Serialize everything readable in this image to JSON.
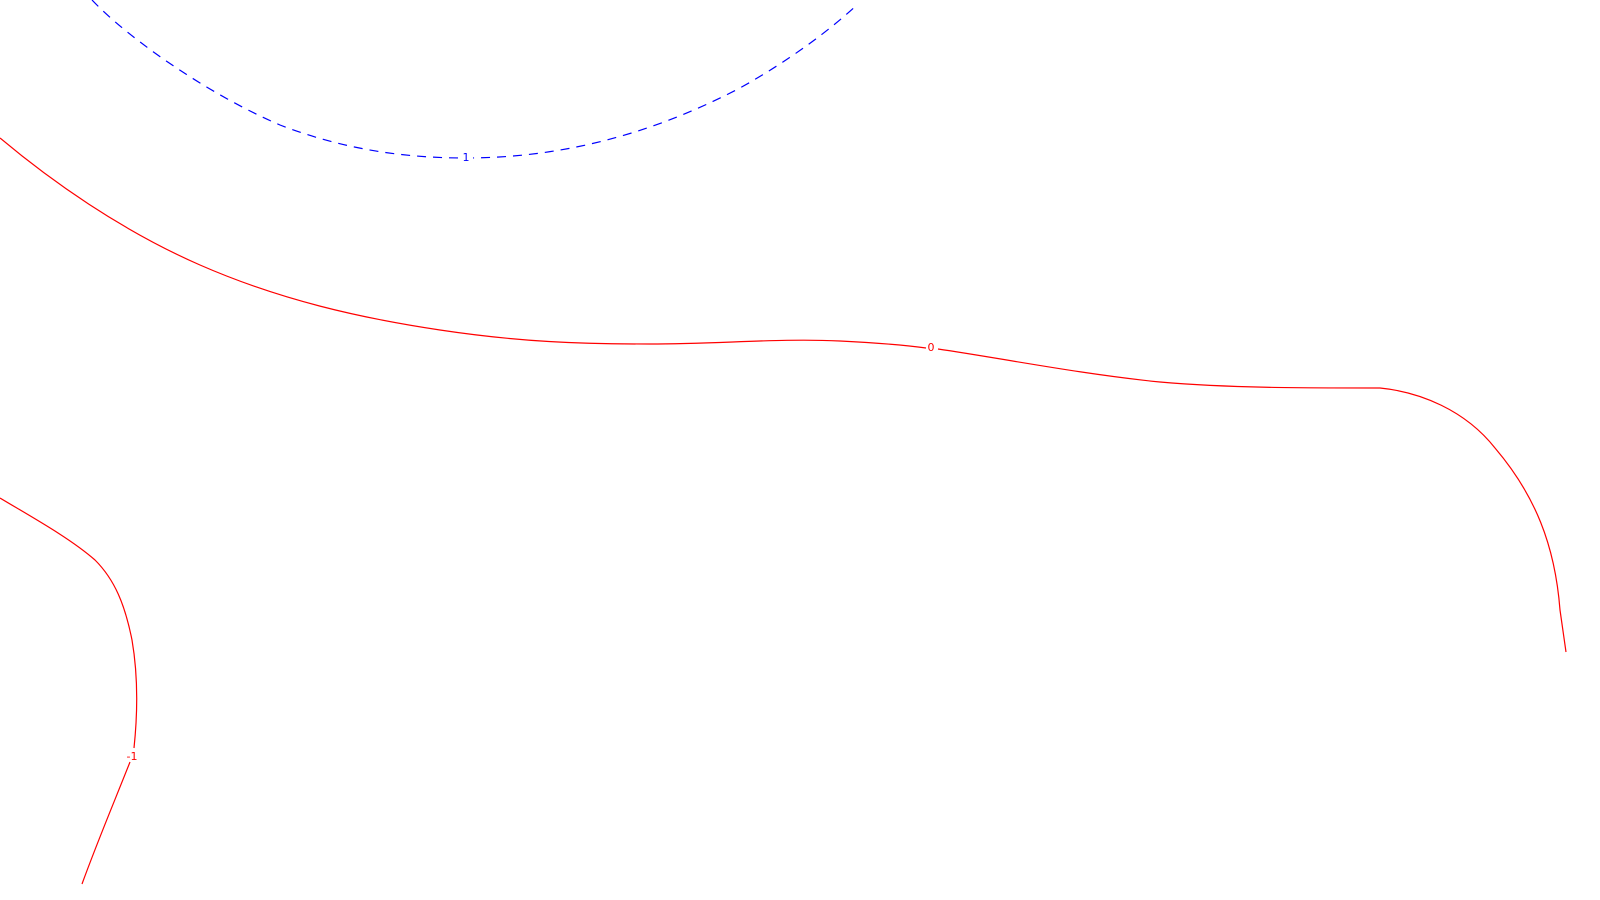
{
  "contours": [
    {
      "id": "contour-blue-dashed",
      "label": "1",
      "color": "#0000ff",
      "style": "dashed"
    },
    {
      "id": "contour-red-main",
      "label": "0",
      "color": "#ff0000",
      "style": "solid"
    },
    {
      "id": "contour-red-lower-left",
      "label": "-1",
      "color": "#ff0000",
      "style": "solid"
    }
  ]
}
